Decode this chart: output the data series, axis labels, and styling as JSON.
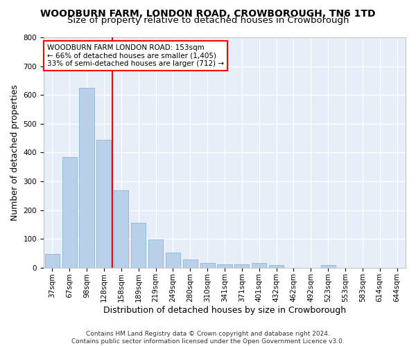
{
  "title": "WOODBURN FARM, LONDON ROAD, CROWBOROUGH, TN6 1TD",
  "subtitle": "Size of property relative to detached houses in Crowborough",
  "xlabel": "Distribution of detached houses by size in Crowborough",
  "ylabel": "Number of detached properties",
  "footer1": "Contains HM Land Registry data © Crown copyright and database right 2024.",
  "footer2": "Contains public sector information licensed under the Open Government Licence v3.0.",
  "categories": [
    "37sqm",
    "67sqm",
    "98sqm",
    "128sqm",
    "158sqm",
    "189sqm",
    "219sqm",
    "249sqm",
    "280sqm",
    "310sqm",
    "341sqm",
    "371sqm",
    "401sqm",
    "432sqm",
    "462sqm",
    "492sqm",
    "523sqm",
    "553sqm",
    "583sqm",
    "614sqm",
    "644sqm"
  ],
  "values": [
    47,
    383,
    624,
    444,
    268,
    155,
    98,
    52,
    28,
    17,
    11,
    11,
    15,
    8,
    0,
    0,
    8,
    0,
    0,
    0,
    0
  ],
  "bar_color": "#b8d0e8",
  "bar_edgecolor": "#7aafd4",
  "vline_x": 3.5,
  "vline_color": "red",
  "ylim": [
    0,
    800
  ],
  "yticks": [
    0,
    100,
    200,
    300,
    400,
    500,
    600,
    700,
    800
  ],
  "annotation_line1": "WOODBURN FARM LONDON ROAD: 153sqm",
  "annotation_line2": "← 66% of detached houses are smaller (1,405)",
  "annotation_line3": "33% of semi-detached houses are larger (712) →",
  "annotation_box_edgecolor": "red",
  "annotation_box_facecolor": "white",
  "background_color": "#e8eef7",
  "grid_color": "white",
  "title_fontsize": 10,
  "subtitle_fontsize": 9.5,
  "axis_label_fontsize": 9,
  "tick_fontsize": 7.5,
  "annotation_fontsize": 7.5,
  "footer_fontsize": 6.5
}
